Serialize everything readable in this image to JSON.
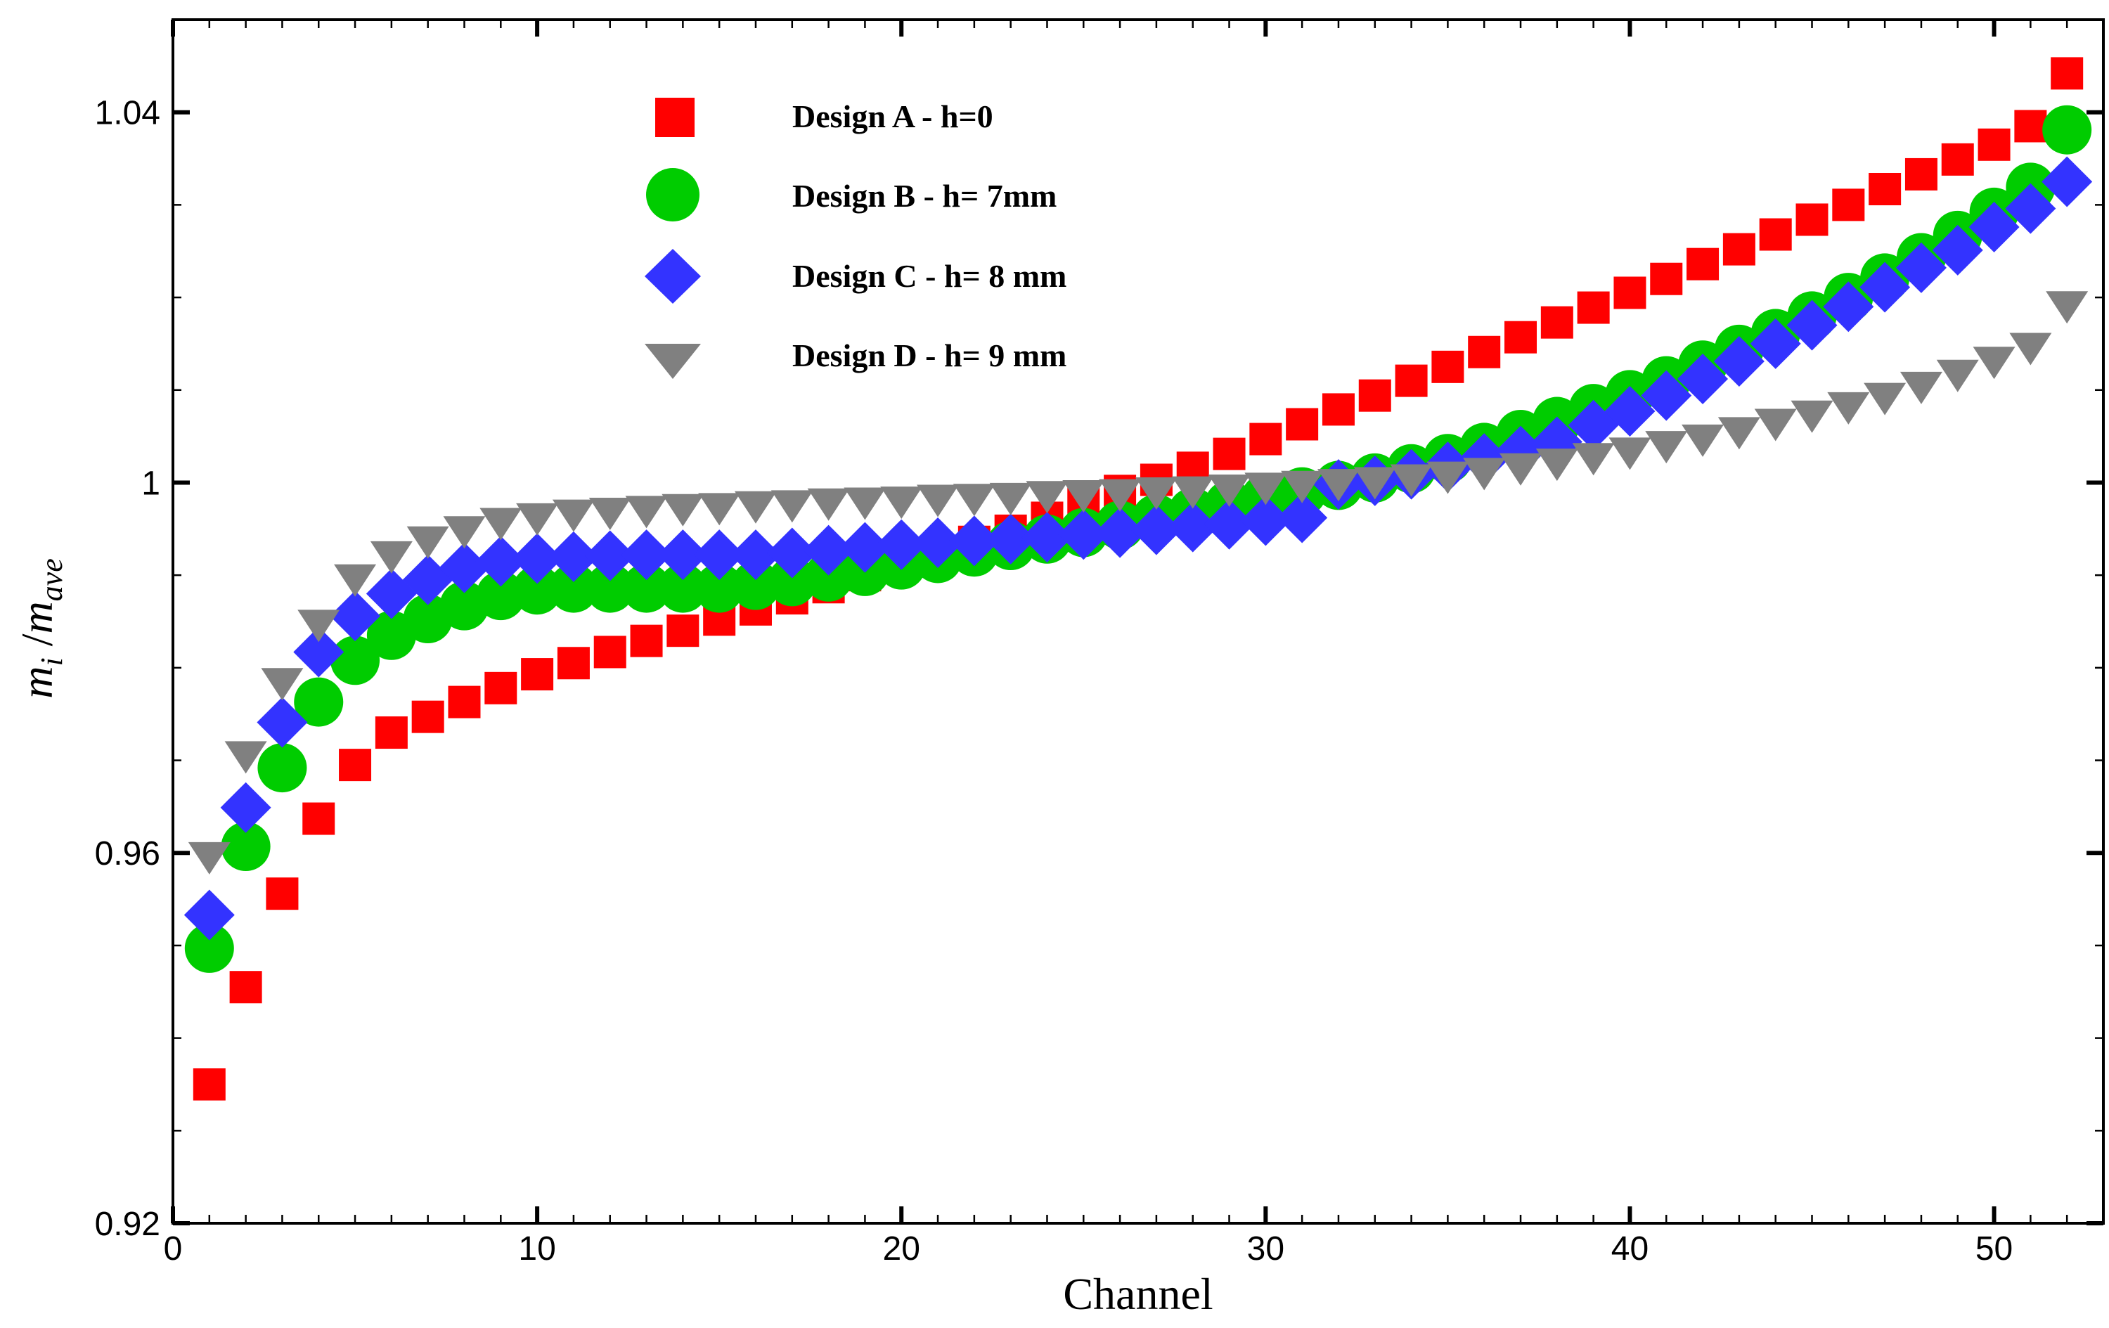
{
  "chart_data": {
    "type": "scatter",
    "title": "",
    "xlabel": "Channel",
    "ylabel": {
      "base": "m",
      "sub1": "i",
      "slash": " /",
      "base2": "m",
      "sub2": "ave"
    },
    "xlim": [
      0,
      53
    ],
    "ylim": [
      0.92,
      1.05
    ],
    "x_ticks": [
      0,
      10,
      20,
      30,
      40,
      50
    ],
    "x_tick_labels": [
      "0",
      "10",
      "20",
      "30",
      "40",
      "50"
    ],
    "y_ticks": [
      0.92,
      0.96,
      1.0,
      1.04
    ],
    "y_tick_labels": [
      "0.92",
      "0.96",
      "1",
      "1.04"
    ],
    "legend_position": "top-left",
    "series": [
      {
        "name": "Design A - h=0",
        "marker": "square",
        "color": "#ff0000",
        "x": [
          1,
          2,
          3,
          4,
          5,
          6,
          7,
          8,
          9,
          10,
          11,
          12,
          13,
          14,
          15,
          16,
          17,
          18,
          19,
          20,
          21,
          22,
          23,
          24,
          25,
          26,
          27,
          28,
          29,
          30,
          31,
          32,
          33,
          34,
          35,
          36,
          37,
          38,
          39,
          40,
          41,
          42,
          43,
          44,
          45,
          46,
          47,
          48,
          49,
          50,
          51,
          52
        ],
        "values": [
          0.935,
          0.9455,
          0.9556,
          0.9637,
          0.9695,
          0.973,
          0.9747,
          0.9763,
          0.9778,
          0.9793,
          0.9805,
          0.9817,
          0.9829,
          0.984,
          0.9852,
          0.9863,
          0.9875,
          0.9887,
          0.99,
          0.9913,
          0.9925,
          0.9936,
          0.9948,
          0.9962,
          0.9977,
          0.9991,
          1.0003,
          1.0016,
          1.0031,
          1.0047,
          1.0063,
          1.0079,
          1.0094,
          1.011,
          1.0125,
          1.0141,
          1.0157,
          1.0173,
          1.0189,
          1.0205,
          1.022,
          1.0236,
          1.0252,
          1.0268,
          1.0284,
          1.03,
          1.0317,
          1.0333,
          1.0349,
          1.0365,
          1.0385,
          1.0442
        ]
      },
      {
        "name": "Design B - h= 7mm",
        "marker": "circle",
        "color": "#00cc00",
        "x": [
          1,
          2,
          3,
          4,
          5,
          6,
          7,
          8,
          9,
          10,
          11,
          12,
          13,
          14,
          15,
          16,
          17,
          18,
          19,
          20,
          21,
          22,
          23,
          24,
          25,
          26,
          27,
          28,
          29,
          30,
          31,
          32,
          33,
          34,
          35,
          36,
          37,
          38,
          39,
          40,
          41,
          42,
          43,
          44,
          45,
          46,
          47,
          48,
          49,
          50,
          51,
          52
        ],
        "values": [
          0.9497,
          0.9607,
          0.9692,
          0.9763,
          0.9808,
          0.9835,
          0.9853,
          0.9867,
          0.9878,
          0.9884,
          0.9886,
          0.9886,
          0.9886,
          0.9886,
          0.9886,
          0.9889,
          0.9893,
          0.9898,
          0.9904,
          0.9911,
          0.9918,
          0.9925,
          0.9932,
          0.9939,
          0.9946,
          0.9954,
          0.9961,
          0.9968,
          0.9976,
          0.9983,
          0.999,
          0.9997,
          1.0005,
          1.0015,
          1.0026,
          1.0038,
          1.0052,
          1.0066,
          1.008,
          1.0095,
          1.011,
          1.0127,
          1.0144,
          1.0161,
          1.018,
          1.02,
          1.0221,
          1.0243,
          1.0267,
          1.0292,
          1.0319,
          1.0381
        ]
      },
      {
        "name": "Design C - h= 8 mm",
        "marker": "diamond",
        "color": "#3333ff",
        "x": [
          1,
          2,
          3,
          4,
          5,
          6,
          7,
          8,
          9,
          10,
          11,
          12,
          13,
          14,
          15,
          16,
          17,
          18,
          19,
          20,
          21,
          22,
          23,
          24,
          25,
          26,
          27,
          28,
          29,
          30,
          31,
          32,
          33,
          34,
          35,
          36,
          37,
          38,
          39,
          40,
          41,
          42,
          43,
          44,
          45,
          46,
          47,
          48,
          49,
          50,
          51,
          52
        ],
        "values": [
          0.9533,
          0.9649,
          0.9741,
          0.9817,
          0.9856,
          0.988,
          0.9895,
          0.9908,
          0.9915,
          0.9918,
          0.992,
          0.9921,
          0.9922,
          0.9922,
          0.9922,
          0.9922,
          0.9924,
          0.9927,
          0.993,
          0.9933,
          0.9935,
          0.9937,
          0.9939,
          0.9941,
          0.9944,
          0.9946,
          0.9949,
          0.9952,
          0.9955,
          0.9959,
          0.9962,
          0.9998,
          1.0002,
          1.0009,
          1.0017,
          1.0026,
          1.0034,
          1.0044,
          1.0062,
          1.0077,
          1.0094,
          1.0112,
          1.0131,
          1.015,
          1.017,
          1.019,
          1.0211,
          1.0232,
          1.0251,
          1.0276,
          1.0296,
          1.0325
        ]
      },
      {
        "name": "Design D - h= 9 mm",
        "marker": "triangle-down",
        "color": "#808080",
        "x": [
          1,
          2,
          3,
          4,
          5,
          6,
          7,
          8,
          9,
          10,
          11,
          12,
          13,
          14,
          15,
          16,
          17,
          18,
          19,
          20,
          21,
          22,
          23,
          24,
          25,
          26,
          27,
          28,
          29,
          30,
          31,
          32,
          33,
          34,
          35,
          36,
          37,
          38,
          39,
          40,
          41,
          42,
          43,
          44,
          45,
          46,
          47,
          48,
          49,
          50,
          51,
          52
        ],
        "values": [
          0.9598,
          0.9707,
          0.9786,
          0.9849,
          0.9898,
          0.9923,
          0.9939,
          0.995,
          0.9959,
          0.9964,
          0.9968,
          0.997,
          0.9972,
          0.9974,
          0.9975,
          0.9977,
          0.9978,
          0.998,
          0.9981,
          0.9982,
          0.9984,
          0.9985,
          0.9986,
          0.9988,
          0.9989,
          0.999,
          0.9992,
          0.9993,
          0.9995,
          0.9997,
          0.9999,
          1.0001,
          1.0003,
          1.0006,
          1.0009,
          1.0013,
          1.0018,
          1.0023,
          1.0029,
          1.0035,
          1.0042,
          1.0049,
          1.0057,
          1.0066,
          1.0075,
          1.0084,
          1.0094,
          1.0106,
          1.0119,
          1.0133,
          1.0148,
          1.0193
        ]
      }
    ]
  }
}
